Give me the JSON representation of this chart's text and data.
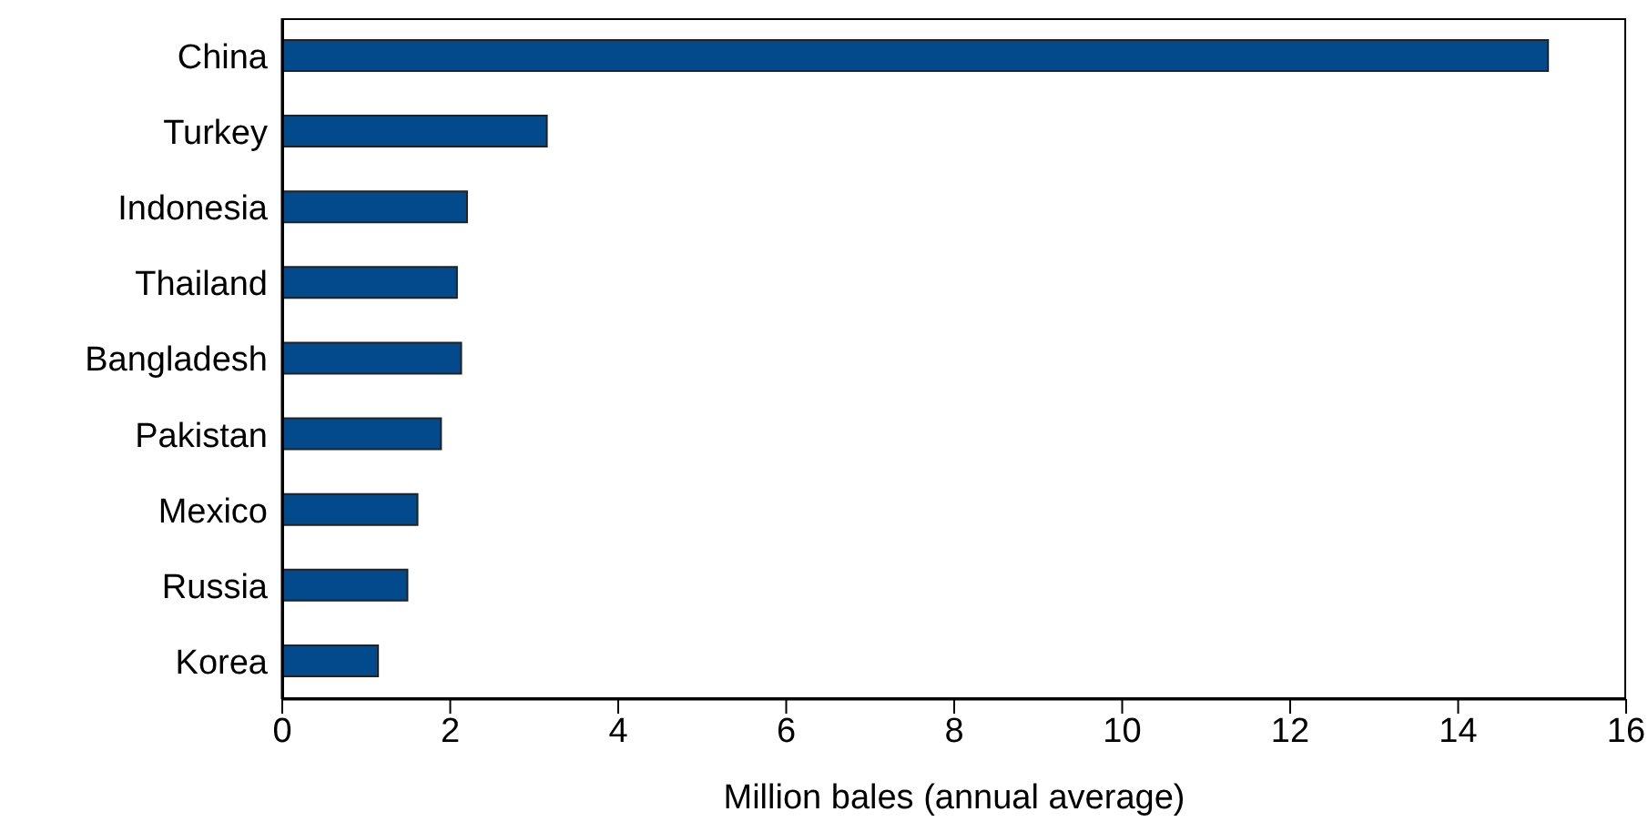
{
  "chart_data": {
    "type": "bar",
    "orientation": "horizontal",
    "xlabel": "Million bales (annual average)",
    "categories": [
      "China",
      "Turkey",
      "Indonesia",
      "Thailand",
      "Bangladesh",
      "Pakistan",
      "Mexico",
      "Russia",
      "Korea"
    ],
    "values": [
      15.07,
      3.15,
      2.2,
      2.08,
      2.13,
      1.89,
      1.61,
      1.49,
      1.14
    ],
    "color": "#034a8c",
    "xlim": [
      0,
      16
    ],
    "xticks": [
      0,
      2,
      4,
      6,
      8,
      10,
      12,
      14,
      16
    ],
    "grid": false,
    "legend": false
  }
}
